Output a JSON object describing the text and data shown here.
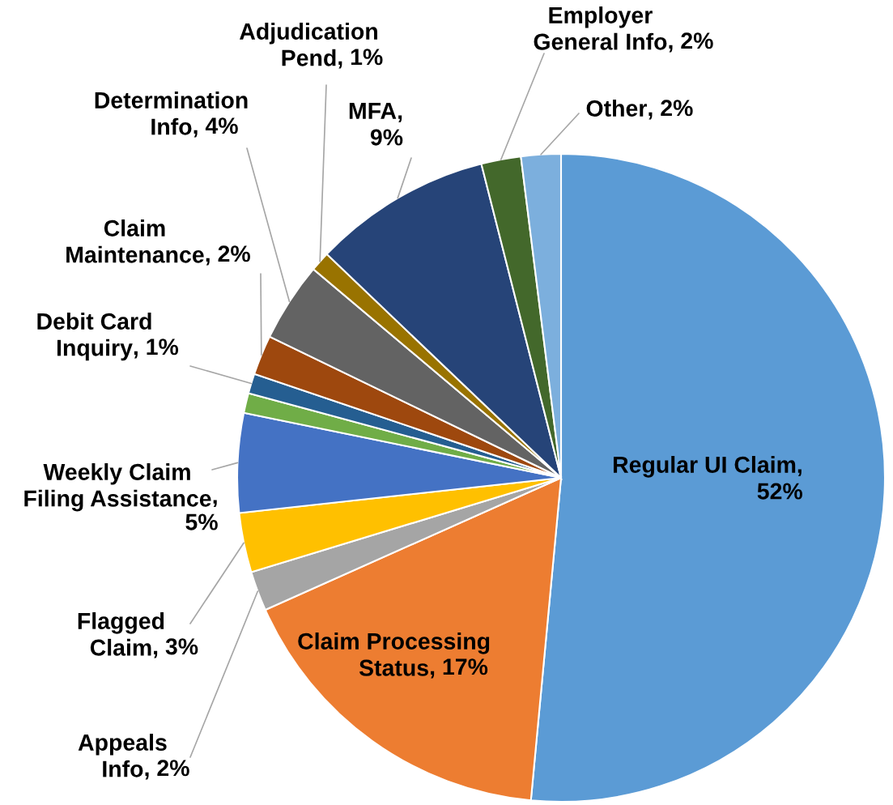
{
  "chart_data": {
    "type": "pie",
    "categories": [
      "Regular UI Claim",
      "Claim Processing\nStatus",
      "Appeals\nInfo",
      "Flagged\nClaim",
      "Weekly Claim\nFiling Assistance",
      null,
      "Debit Card\nInquiry",
      "Claim\nMaintenance",
      "Determination\nInfo",
      "Adjudication\nPend",
      "MFA",
      "Employer\nGeneral Info",
      "Other"
    ],
    "values": [
      52,
      17,
      2,
      3,
      5,
      1,
      1,
      2,
      4,
      1,
      9,
      2,
      2
    ],
    "colors": [
      "#5b9bd5",
      "#ed7d31",
      "#a5a5a5",
      "#ffc000",
      "#4472c4",
      "#70ad47",
      "#255e91",
      "#9e480e",
      "#636363",
      "#997300",
      "#264478",
      "#43682b",
      "#7cafdd"
    ],
    "value_labels": [
      ",\n52%",
      ", 17%",
      ", 2%",
      ", 3%",
      ",\n5%",
      null,
      ", 1%",
      ", 2%",
      ", 4%",
      ", 1%",
      ",\n9%",
      ", 2%",
      ", 2%"
    ]
  }
}
